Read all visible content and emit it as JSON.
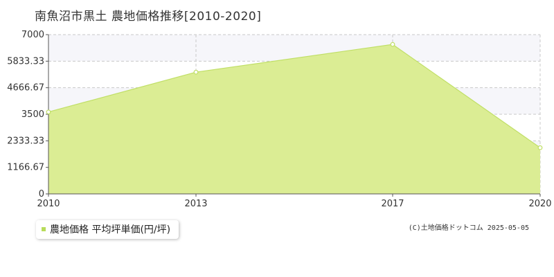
{
  "title": "南魚沼市黒土  農地価格推移[2010-2020]",
  "legend": {
    "label": "農地価格 平均坪単価(円/坪)"
  },
  "copyright": "(C)土地価格ドットコム 2025-05-05",
  "colors": {
    "area_fill": "#dbed94",
    "line": "#c0df66",
    "marker_stroke": "#c0df66",
    "marker_fill": "#ffffff",
    "grid": "#c8c8c8",
    "band": "#f6f6fa",
    "axis": "#555555",
    "legend_swatch": "#b8dc5a"
  },
  "chart_data": {
    "type": "area",
    "title": "南魚沼市黒土  農地価格推移[2010-2020]",
    "xlabel": "",
    "ylabel": "",
    "x": [
      2010,
      2013,
      2017,
      2020
    ],
    "x_ticks": [
      "2010",
      "2013",
      "2017",
      "2020"
    ],
    "xlim": [
      2010,
      2020
    ],
    "ylim": [
      0,
      7000
    ],
    "y_ticks": [
      "0",
      "1166.67",
      "2333.33",
      "3500",
      "4666.67",
      "5833.33",
      "7000"
    ],
    "y_tick_values": [
      0,
      1166.67,
      2333.33,
      3500,
      4666.67,
      5833.33,
      7000
    ],
    "series": [
      {
        "name": "農地価格 平均坪単価(円/坪)",
        "values": [
          3600,
          5350,
          6570,
          2030
        ]
      }
    ],
    "grid": true,
    "legend_position": "bottom-left"
  }
}
